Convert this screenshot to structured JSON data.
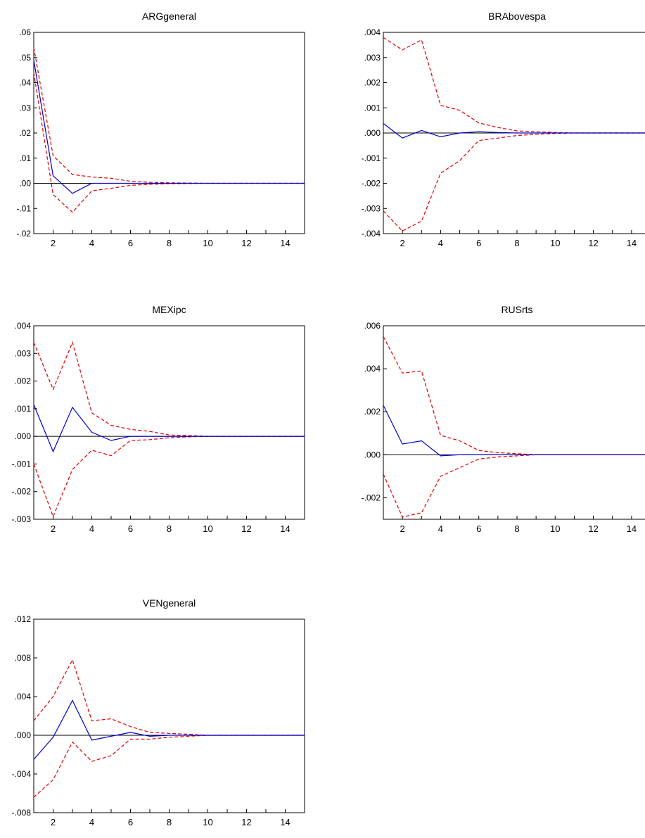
{
  "chart_data": [
    {
      "type": "line",
      "title": "ARGgeneral",
      "x": [
        1,
        2,
        3,
        4,
        5,
        6,
        7,
        8,
        9,
        10,
        11,
        12,
        13,
        14,
        15
      ],
      "xticks": [
        2,
        4,
        6,
        8,
        10,
        12,
        14
      ],
      "xlim": [
        1,
        15
      ],
      "ylim": [
        -0.02,
        0.06
      ],
      "yticks": [
        -0.02,
        -0.01,
        0.0,
        0.01,
        0.02,
        0.03,
        0.04,
        0.05,
        0.06
      ],
      "ytick_labels": [
        "-.02",
        "-.01",
        ".00",
        ".01",
        ".02",
        ".03",
        ".04",
        ".05",
        ".06"
      ],
      "series": [
        {
          "role": "response",
          "color": "#0000cc",
          "dash": false,
          "values": [
            0.049,
            0.003,
            -0.004,
            0.0,
            0.0,
            0.0,
            0.0,
            0.0,
            0.0,
            0.0,
            0.0,
            0.0,
            0.0,
            0.0,
            0.0
          ]
        },
        {
          "role": "upper band",
          "color": "#dd0000",
          "dash": true,
          "values": [
            0.054,
            0.011,
            0.0035,
            0.0025,
            0.002,
            0.0008,
            0.0004,
            0.0002,
            0.0001,
            0.0,
            0.0,
            0.0,
            0.0,
            0.0,
            0.0
          ]
        },
        {
          "role": "lower band",
          "color": "#dd0000",
          "dash": true,
          "values": [
            0.044,
            -0.0045,
            -0.0115,
            -0.003,
            -0.002,
            -0.0008,
            -0.0004,
            -0.0002,
            -0.0001,
            0.0,
            0.0,
            0.0,
            0.0,
            0.0,
            0.0
          ]
        }
      ]
    },
    {
      "type": "line",
      "title": "BRAbovespa",
      "x": [
        1,
        2,
        3,
        4,
        5,
        6,
        7,
        8,
        9,
        10,
        11,
        12,
        13,
        14,
        15
      ],
      "xticks": [
        2,
        4,
        6,
        8,
        10,
        12,
        14
      ],
      "xlim": [
        1,
        15
      ],
      "ylim": [
        -0.004,
        0.004
      ],
      "yticks": [
        -0.004,
        -0.003,
        -0.002,
        -0.001,
        0.0,
        0.001,
        0.002,
        0.003,
        0.004
      ],
      "ytick_labels": [
        "-.004",
        "-.003",
        "-.002",
        "-.001",
        ".000",
        ".001",
        ".002",
        ".003",
        ".004"
      ],
      "series": [
        {
          "role": "response",
          "color": "#0000cc",
          "dash": false,
          "values": [
            0.00038,
            -0.0002,
            0.0001,
            -0.00015,
            0.0,
            5e-05,
            2e-05,
            0.0,
            0.0,
            0.0,
            0.0,
            0.0,
            0.0,
            0.0,
            0.0
          ]
        },
        {
          "role": "upper band",
          "color": "#dd0000",
          "dash": true,
          "values": [
            0.0038,
            0.0033,
            0.0037,
            0.0011,
            0.0009,
            0.0004,
            0.00022,
            8e-05,
            5e-05,
            2e-05,
            0.0,
            0.0,
            0.0,
            0.0,
            0.0
          ]
        },
        {
          "role": "lower band",
          "color": "#dd0000",
          "dash": true,
          "values": [
            -0.0031,
            -0.0039,
            -0.0035,
            -0.0016,
            -0.0011,
            -0.0003,
            -0.0002,
            -0.0001,
            -5e-05,
            -2e-05,
            0.0,
            0.0,
            0.0,
            0.0,
            0.0
          ]
        }
      ]
    },
    {
      "type": "line",
      "title": "MEXipc",
      "x": [
        1,
        2,
        3,
        4,
        5,
        6,
        7,
        8,
        9,
        10,
        11,
        12,
        13,
        14,
        15
      ],
      "xticks": [
        2,
        4,
        6,
        8,
        10,
        12,
        14
      ],
      "xlim": [
        1,
        15
      ],
      "ylim": [
        -0.003,
        0.004
      ],
      "yticks": [
        -0.003,
        -0.002,
        -0.001,
        0.0,
        0.001,
        0.002,
        0.003,
        0.004
      ],
      "ytick_labels": [
        "-.003",
        "-.002",
        "-.001",
        ".000",
        ".001",
        ".002",
        ".003",
        ".004"
      ],
      "series": [
        {
          "role": "response",
          "color": "#0000cc",
          "dash": false,
          "values": [
            0.00115,
            -0.00055,
            0.00105,
            0.00015,
            -0.00015,
            0.0,
            0.0,
            0.0,
            0.0,
            0.0,
            0.0,
            0.0,
            0.0,
            0.0,
            0.0
          ]
        },
        {
          "role": "upper band",
          "color": "#dd0000",
          "dash": true,
          "values": [
            0.0034,
            0.0017,
            0.0034,
            0.00085,
            0.0004,
            0.00025,
            0.00018,
            5e-05,
            3e-05,
            0.0,
            0.0,
            0.0,
            0.0,
            0.0,
            0.0
          ]
        },
        {
          "role": "lower band",
          "color": "#dd0000",
          "dash": true,
          "values": [
            -0.001,
            -0.0029,
            -0.0012,
            -0.0005,
            -0.0007,
            -0.00015,
            -0.00012,
            -5e-05,
            -2e-05,
            0.0,
            0.0,
            0.0,
            0.0,
            0.0,
            0.0
          ]
        }
      ]
    },
    {
      "type": "line",
      "title": "RUSrts",
      "x": [
        1,
        2,
        3,
        4,
        5,
        6,
        7,
        8,
        9,
        10,
        11,
        12,
        13,
        14,
        15
      ],
      "xticks": [
        2,
        4,
        6,
        8,
        10,
        12,
        14
      ],
      "xlim": [
        1,
        15
      ],
      "ylim": [
        -0.003,
        0.006
      ],
      "yticks": [
        -0.002,
        0.0,
        0.002,
        0.004,
        0.006
      ],
      "ytick_labels": [
        "-.002",
        ".000",
        ".002",
        ".004",
        ".006"
      ],
      "series": [
        {
          "role": "response",
          "color": "#0000cc",
          "dash": false,
          "values": [
            0.0023,
            0.0005,
            0.00065,
            -5e-05,
            0.0,
            0.0,
            0.0,
            0.0,
            0.0,
            0.0,
            0.0,
            0.0,
            0.0,
            0.0,
            0.0
          ]
        },
        {
          "role": "upper band",
          "color": "#dd0000",
          "dash": true,
          "values": [
            0.0055,
            0.0038,
            0.0039,
            0.0009,
            0.00065,
            0.0002,
            0.0001,
            5e-05,
            0.0,
            0.0,
            0.0,
            0.0,
            0.0,
            0.0,
            0.0
          ]
        },
        {
          "role": "lower band",
          "color": "#dd0000",
          "dash": true,
          "values": [
            -0.0009,
            -0.0029,
            -0.0027,
            -0.001,
            -0.0006,
            -0.0002,
            -0.0001,
            -5e-05,
            0.0,
            0.0,
            0.0,
            0.0,
            0.0,
            0.0,
            0.0
          ]
        }
      ]
    },
    {
      "type": "line",
      "title": "VENgeneral",
      "x": [
        1,
        2,
        3,
        4,
        5,
        6,
        7,
        8,
        9,
        10,
        11,
        12,
        13,
        14,
        15
      ],
      "xticks": [
        2,
        4,
        6,
        8,
        10,
        12,
        14
      ],
      "xlim": [
        1,
        15
      ],
      "ylim": [
        -0.008,
        0.012
      ],
      "yticks": [
        -0.008,
        -0.004,
        0.0,
        0.004,
        0.008,
        0.012
      ],
      "ytick_labels": [
        "-.008",
        "-.004",
        ".000",
        ".004",
        ".008",
        ".012"
      ],
      "series": [
        {
          "role": "response",
          "color": "#0000cc",
          "dash": false,
          "values": [
            -0.0025,
            -0.0002,
            0.0036,
            -0.0005,
            -0.0001,
            0.0003,
            -0.0001,
            0.0,
            0.0,
            0.0,
            0.0,
            0.0,
            0.0,
            0.0,
            0.0
          ]
        },
        {
          "role": "upper band",
          "color": "#dd0000",
          "dash": true,
          "values": [
            0.0015,
            0.004,
            0.0078,
            0.0015,
            0.0017,
            0.0009,
            0.0003,
            0.0002,
            0.0001,
            0.0,
            0.0,
            0.0,
            0.0,
            0.0,
            0.0
          ]
        },
        {
          "role": "lower band",
          "color": "#dd0000",
          "dash": true,
          "values": [
            -0.0064,
            -0.0046,
            -0.0007,
            -0.0027,
            -0.0021,
            -0.0004,
            -0.0004,
            -0.0002,
            -0.0001,
            0.0,
            0.0,
            0.0,
            0.0,
            0.0,
            0.0
          ]
        }
      ]
    }
  ]
}
